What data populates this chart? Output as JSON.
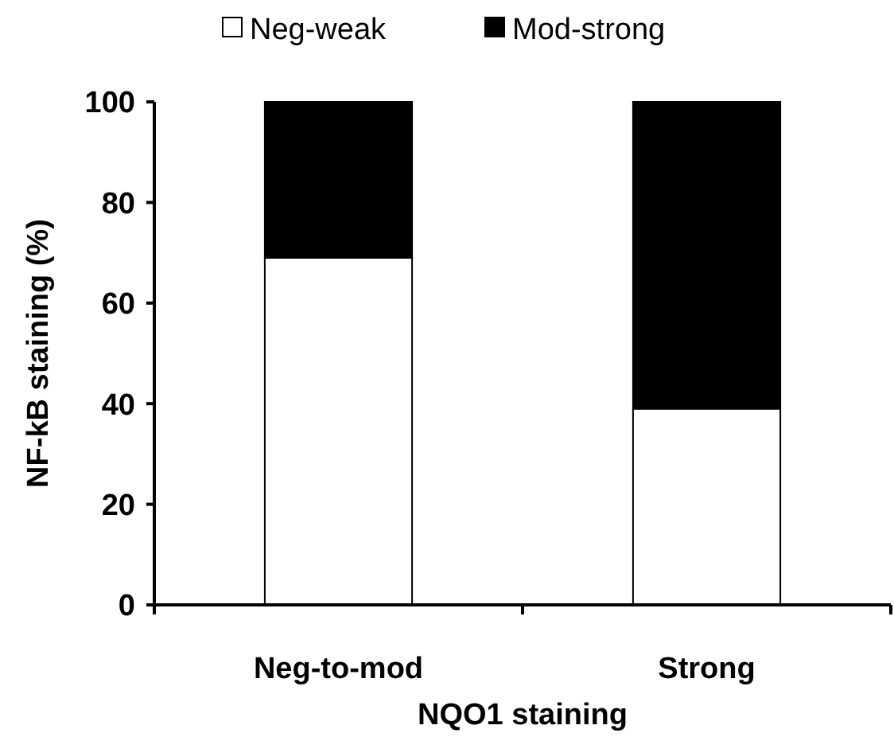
{
  "chart_data": {
    "type": "bar",
    "stacked": true,
    "xlabel": "NQO1 staining",
    "ylabel": "NF-kB staining (%)",
    "categories": [
      "Neg-to-mod",
      "Strong"
    ],
    "series": [
      {
        "name": "Neg-weak",
        "color": "#ffffff",
        "values": [
          69,
          39
        ]
      },
      {
        "name": "Mod-strong",
        "color": "#000000",
        "values": [
          31,
          61
        ]
      }
    ],
    "ylim": [
      0,
      100
    ],
    "yticks": [
      0,
      20,
      40,
      60,
      80,
      100
    ],
    "legend": "top",
    "grid": false
  }
}
